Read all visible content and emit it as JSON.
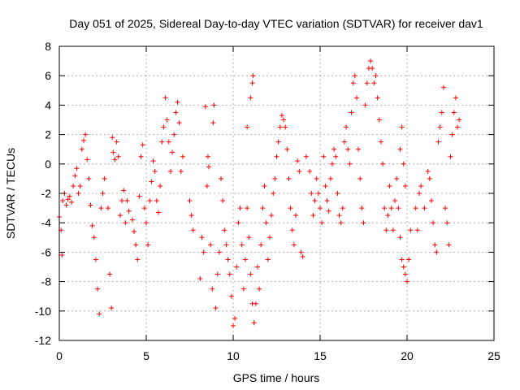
{
  "chart_data": {
    "type": "scatter",
    "title": "Day 051 of 2025, Sidereal Day-to-day VTEC variation (SDTVAR) for receiver dav1",
    "xlabel": "GPS time / hours",
    "ylabel": "SDTVAR / TECUs",
    "xlim": [
      0,
      25
    ],
    "ylim": [
      -12,
      8
    ],
    "xticks": [
      0,
      5,
      10,
      15,
      20,
      25
    ],
    "xtick_labels": [
      "0",
      "5",
      "10",
      "15",
      "20",
      "25"
    ],
    "yticks": [
      -12,
      -10,
      -8,
      -6,
      -4,
      -2,
      0,
      2,
      4,
      6,
      8
    ],
    "ytick_labels": [
      "-12",
      "-10",
      "-8",
      "-6",
      "-4",
      "-2",
      "0",
      "2",
      "4",
      "6",
      "8"
    ],
    "grid": true,
    "marker": "plus",
    "marker_color": "#ff0000",
    "series": [
      {
        "name": "dav1",
        "points": [
          [
            0.0,
            -3.6
          ],
          [
            0.1,
            -4.5
          ],
          [
            0.15,
            -6.2
          ],
          [
            0.2,
            -2.5
          ],
          [
            0.3,
            -2.0
          ],
          [
            0.4,
            -2.8
          ],
          [
            0.5,
            -2.4
          ],
          [
            0.6,
            -2.2
          ],
          [
            0.7,
            -2.6
          ],
          [
            0.8,
            -1.5
          ],
          [
            0.9,
            -0.8
          ],
          [
            1.0,
            -0.3
          ],
          [
            1.1,
            -2.0
          ],
          [
            1.2,
            -1.5
          ],
          [
            1.3,
            1.0
          ],
          [
            1.4,
            1.6
          ],
          [
            1.5,
            2.0
          ],
          [
            1.6,
            0.3
          ],
          [
            1.7,
            -1.0
          ],
          [
            1.8,
            -2.8
          ],
          [
            1.9,
            -4.2
          ],
          [
            2.0,
            -5.0
          ],
          [
            2.1,
            -6.5
          ],
          [
            2.2,
            -8.5
          ],
          [
            2.3,
            -10.2
          ],
          [
            2.4,
            -3.0
          ],
          [
            2.5,
            -2.0
          ],
          [
            2.6,
            -1.0
          ],
          [
            2.8,
            -3.0
          ],
          [
            2.9,
            -7.5
          ],
          [
            3.0,
            -9.8
          ],
          [
            3.05,
            1.8
          ],
          [
            3.1,
            0.8
          ],
          [
            3.2,
            0.3
          ],
          [
            3.3,
            1.5
          ],
          [
            3.4,
            0.5
          ],
          [
            3.5,
            -3.5
          ],
          [
            3.6,
            -2.5
          ],
          [
            3.7,
            -1.8
          ],
          [
            3.8,
            -4.0
          ],
          [
            3.9,
            -2.5
          ],
          [
            4.0,
            -3.2
          ],
          [
            4.2,
            -3.8
          ],
          [
            4.3,
            -4.6
          ],
          [
            4.4,
            -5.5
          ],
          [
            4.5,
            -6.5
          ],
          [
            4.6,
            -2.2
          ],
          [
            4.7,
            0.5
          ],
          [
            4.8,
            1.3
          ],
          [
            4.9,
            -3.0
          ],
          [
            5.0,
            -4.0
          ],
          [
            5.1,
            -5.5
          ],
          [
            5.2,
            -2.5
          ],
          [
            5.3,
            -1.2
          ],
          [
            5.4,
            0.2
          ],
          [
            5.5,
            -0.5
          ],
          [
            5.6,
            -2.5
          ],
          [
            5.7,
            -3.3
          ],
          [
            5.8,
            -1.5
          ],
          [
            5.9,
            1.5
          ],
          [
            6.0,
            2.5
          ],
          [
            6.1,
            4.5
          ],
          [
            6.2,
            3.0
          ],
          [
            6.3,
            1.5
          ],
          [
            6.4,
            -0.5
          ],
          [
            6.5,
            0.8
          ],
          [
            6.6,
            2.0
          ],
          [
            6.7,
            3.5
          ],
          [
            6.8,
            4.2
          ],
          [
            6.9,
            2.8
          ],
          [
            7.0,
            -0.5
          ],
          [
            7.1,
            0.5
          ],
          [
            7.5,
            -2.5
          ],
          [
            7.6,
            -3.5
          ],
          [
            7.7,
            -4.5
          ],
          [
            8.1,
            -7.8
          ],
          [
            8.2,
            -5.0
          ],
          [
            8.3,
            -6.0
          ],
          [
            8.4,
            3.9
          ],
          [
            8.5,
            -1.5
          ],
          [
            8.55,
            0.5
          ],
          [
            8.6,
            -0.2
          ],
          [
            8.7,
            -5.5
          ],
          [
            8.8,
            -8.5
          ],
          [
            8.85,
            2.8
          ],
          [
            8.9,
            4.0
          ],
          [
            9.0,
            -9.8
          ],
          [
            9.1,
            -7.5
          ],
          [
            9.2,
            -6.0
          ],
          [
            9.3,
            -1.0
          ],
          [
            9.4,
            -2.5
          ],
          [
            9.5,
            -4.5
          ],
          [
            9.6,
            -5.5
          ],
          [
            9.7,
            -6.5
          ],
          [
            9.8,
            -7.5
          ],
          [
            9.9,
            -9.0
          ],
          [
            10.0,
            -11.0
          ],
          [
            10.1,
            -10.5
          ],
          [
            10.2,
            -7.0
          ],
          [
            10.3,
            -4.0
          ],
          [
            10.4,
            -3.0
          ],
          [
            10.5,
            -5.5
          ],
          [
            10.6,
            -8.5
          ],
          [
            10.7,
            -6.5
          ],
          [
            10.8,
            -3.0
          ],
          [
            10.9,
            -5.0
          ],
          [
            11.0,
            -7.5
          ],
          [
            11.1,
            -9.5
          ],
          [
            11.2,
            -10.8
          ],
          [
            11.3,
            -9.5
          ],
          [
            11.0,
            4.5
          ],
          [
            11.1,
            5.5
          ],
          [
            11.15,
            6.0
          ],
          [
            10.8,
            2.5
          ],
          [
            11.4,
            -7.0
          ],
          [
            11.5,
            -8.5
          ],
          [
            11.6,
            -5.5
          ],
          [
            11.7,
            -3.0
          ],
          [
            11.8,
            -1.5
          ],
          [
            11.9,
            -4.0
          ],
          [
            12.0,
            -6.5
          ],
          [
            12.1,
            -5.0
          ],
          [
            12.2,
            -3.5
          ],
          [
            12.3,
            -2.0
          ],
          [
            12.4,
            -1.0
          ],
          [
            12.5,
            0.5
          ],
          [
            12.6,
            1.5
          ],
          [
            12.7,
            2.5
          ],
          [
            12.8,
            3.3
          ],
          [
            12.9,
            3.0
          ],
          [
            13.0,
            2.5
          ],
          [
            13.1,
            1.0
          ],
          [
            13.2,
            -1.0
          ],
          [
            13.3,
            -3.0
          ],
          [
            13.4,
            -4.5
          ],
          [
            13.5,
            -5.5
          ],
          [
            13.6,
            -3.5
          ],
          [
            13.7,
            0.2
          ],
          [
            13.8,
            -0.5
          ],
          [
            13.9,
            -6.0
          ],
          [
            14.0,
            -6.3
          ],
          [
            14.2,
            0.5
          ],
          [
            14.4,
            -0.5
          ],
          [
            14.5,
            -2.0
          ],
          [
            14.6,
            -3.5
          ],
          [
            14.7,
            -2.5
          ],
          [
            14.8,
            -1.0
          ],
          [
            14.9,
            -2.0
          ],
          [
            15.0,
            -3.0
          ],
          [
            15.1,
            -4.0
          ],
          [
            15.2,
            0.5
          ],
          [
            15.3,
            -1.5
          ],
          [
            15.4,
            -2.5
          ],
          [
            15.5,
            -3.2
          ],
          [
            15.6,
            -1.0
          ],
          [
            15.7,
            0.0
          ],
          [
            15.8,
            1.0
          ],
          [
            15.9,
            0.5
          ],
          [
            16.0,
            -2.0
          ],
          [
            16.1,
            -3.5
          ],
          [
            16.2,
            -4.0
          ],
          [
            16.3,
            -3.0
          ],
          [
            16.4,
            1.5
          ],
          [
            16.5,
            2.5
          ],
          [
            16.6,
            1.0
          ],
          [
            16.7,
            0.0
          ],
          [
            16.8,
            3.5
          ],
          [
            16.9,
            5.5
          ],
          [
            17.0,
            6.0
          ],
          [
            17.1,
            4.5
          ],
          [
            17.2,
            1.0
          ],
          [
            17.3,
            -1.0
          ],
          [
            17.4,
            -3.0
          ],
          [
            17.5,
            -4.0
          ],
          [
            17.6,
            4.0
          ],
          [
            17.7,
            5.5
          ],
          [
            17.8,
            6.5
          ],
          [
            17.9,
            7.0
          ],
          [
            18.0,
            6.5
          ],
          [
            18.1,
            5.5
          ],
          [
            18.2,
            6.0
          ],
          [
            18.3,
            4.5
          ],
          [
            18.4,
            3.0
          ],
          [
            18.5,
            1.5
          ],
          [
            18.6,
            0.0
          ],
          [
            18.7,
            -3.0
          ],
          [
            18.8,
            -4.5
          ],
          [
            18.9,
            -3.5
          ],
          [
            19.0,
            -1.5
          ],
          [
            19.1,
            -3.0
          ],
          [
            19.2,
            -4.5
          ],
          [
            19.3,
            -2.5
          ],
          [
            19.4,
            -1.0
          ],
          [
            19.5,
            -3.0
          ],
          [
            19.6,
            -5.0
          ],
          [
            19.7,
            -6.5
          ],
          [
            19.8,
            -7.0
          ],
          [
            19.9,
            -7.5
          ],
          [
            20.0,
            -8.0
          ],
          [
            20.1,
            -6.5
          ],
          [
            19.6,
            1.0
          ],
          [
            19.7,
            2.5
          ],
          [
            19.8,
            0.0
          ],
          [
            19.9,
            -1.5
          ],
          [
            20.2,
            -4.5
          ],
          [
            20.5,
            -3.0
          ],
          [
            20.6,
            -4.5
          ],
          [
            20.7,
            -2.0
          ],
          [
            20.8,
            -1.5
          ],
          [
            21.0,
            -3.0
          ],
          [
            21.2,
            -0.5
          ],
          [
            21.3,
            -1.0
          ],
          [
            21.4,
            -2.5
          ],
          [
            21.5,
            -4.0
          ],
          [
            21.6,
            -5.5
          ],
          [
            21.7,
            -6.0
          ],
          [
            21.8,
            1.5
          ],
          [
            21.9,
            2.5
          ],
          [
            22.0,
            3.5
          ],
          [
            22.1,
            5.2
          ],
          [
            22.2,
            -3.0
          ],
          [
            22.3,
            -4.0
          ],
          [
            22.4,
            -5.5
          ],
          [
            22.5,
            0.5
          ],
          [
            22.6,
            2.0
          ],
          [
            22.7,
            3.5
          ],
          [
            22.8,
            4.5
          ],
          [
            22.9,
            2.5
          ],
          [
            23.0,
            3.0
          ]
        ]
      }
    ]
  }
}
